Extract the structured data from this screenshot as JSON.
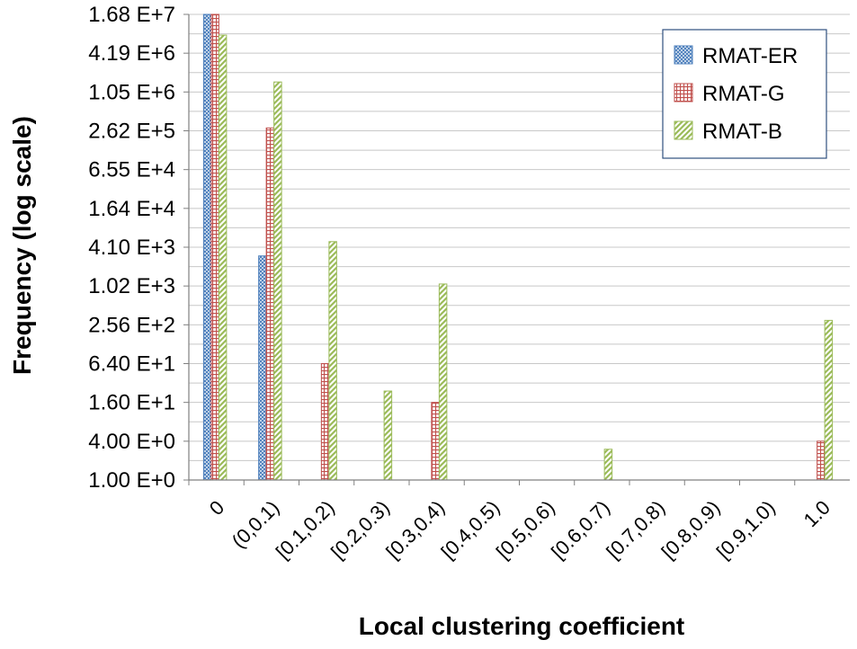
{
  "chart_data": {
    "type": "bar",
    "title": "",
    "xlabel": "Local clustering coefficient",
    "ylabel": "Frequency (log scale)",
    "scale": "log2",
    "ylim": [
      1,
      16777216
    ],
    "yticks": [
      {
        "value": 1,
        "label": "1.00 E+0"
      },
      {
        "value": 4,
        "label": "4.00 E+0"
      },
      {
        "value": 16,
        "label": "1.60 E+1"
      },
      {
        "value": 64,
        "label": "6.40 E+1"
      },
      {
        "value": 256,
        "label": "2.56 E+2"
      },
      {
        "value": 1024,
        "label": "1.02 E+3"
      },
      {
        "value": 4096,
        "label": "4.10 E+3"
      },
      {
        "value": 16384,
        "label": "1.64 E+4"
      },
      {
        "value": 65536,
        "label": "6.55 E+4"
      },
      {
        "value": 262144,
        "label": "2.62 E+5"
      },
      {
        "value": 1048576,
        "label": "1.05 E+6"
      },
      {
        "value": 4194304,
        "label": "4.19 E+6"
      },
      {
        "value": 16777216,
        "label": "1.68 E+7"
      }
    ],
    "categories": [
      "0",
      "(0,0.1)",
      "[0.1,0.2)",
      "[0.2,0.3)",
      "[0.3,0.4)",
      "[0.4,0.5)",
      "[0.5,0.6)",
      "[0.6,0.7)",
      "[0.7,0.8)",
      "[0.8,0.9)",
      "[0.9,1.0)",
      "1.0"
    ],
    "series": [
      {
        "name": "RMAT-ER",
        "color": "#4f81bd",
        "pattern": "crosshatch",
        "values": [
          16777216,
          3000,
          null,
          null,
          null,
          null,
          null,
          null,
          null,
          null,
          null,
          null
        ]
      },
      {
        "name": "RMAT-G",
        "color": "#c0504d",
        "pattern": "grid",
        "values": [
          16777216,
          290000,
          64,
          null,
          16,
          null,
          null,
          null,
          null,
          null,
          null,
          4
        ]
      },
      {
        "name": "RMAT-B",
        "color": "#9bbb59",
        "pattern": "diagonal",
        "values": [
          8000000,
          1500000,
          5000,
          24,
          1100,
          null,
          null,
          3,
          null,
          null,
          null,
          300
        ]
      }
    ],
    "legend": "top-right",
    "grid": true
  }
}
